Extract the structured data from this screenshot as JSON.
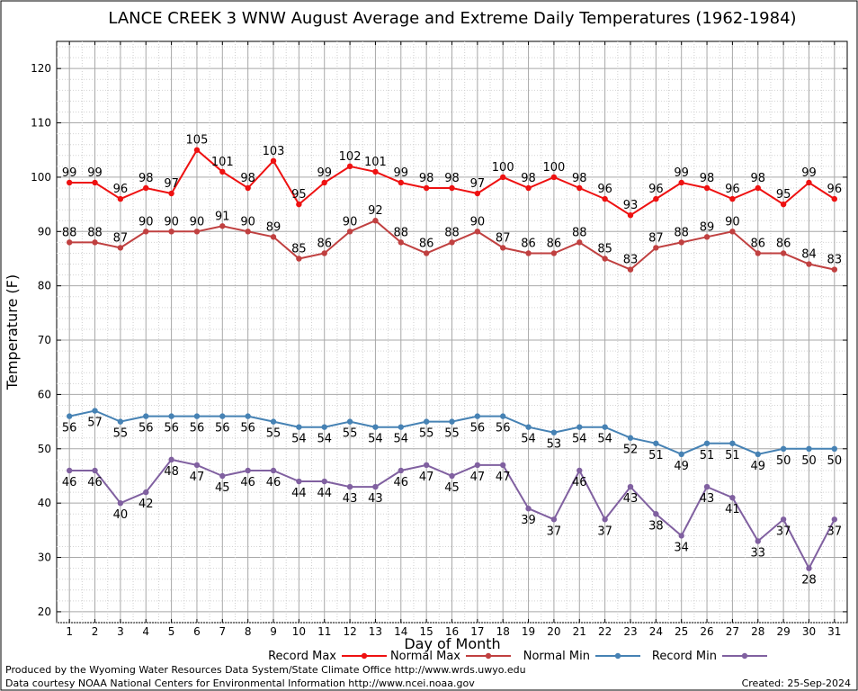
{
  "chart_data": {
    "type": "line",
    "title": "LANCE CREEK 3 WNW August Average and Extreme Daily Temperatures (1962-1984)",
    "xlabel": "Day of Month",
    "ylabel": "Temperature (F)",
    "x": [
      1,
      2,
      3,
      4,
      5,
      6,
      7,
      8,
      9,
      10,
      11,
      12,
      13,
      14,
      15,
      16,
      17,
      18,
      19,
      20,
      21,
      22,
      23,
      24,
      25,
      26,
      27,
      28,
      29,
      30,
      31
    ],
    "xlim": [
      0.5,
      31.5
    ],
    "ylim": [
      18,
      125
    ],
    "yticks": [
      20,
      30,
      40,
      50,
      60,
      70,
      80,
      90,
      100,
      110,
      120
    ],
    "grid": true,
    "legend_position": "bottom",
    "series": [
      {
        "name": "Record Max",
        "color": "#ee1111",
        "label_position": "above",
        "values": [
          99,
          99,
          96,
          98,
          97,
          105,
          101,
          98,
          103,
          95,
          99,
          102,
          101,
          99,
          98,
          98,
          97,
          100,
          98,
          100,
          98,
          96,
          93,
          96,
          99,
          98,
          96,
          98,
          95,
          99,
          96
        ]
      },
      {
        "name": "Normal Max",
        "color": "#c04040",
        "label_position": "above",
        "values": [
          88,
          88,
          87,
          90,
          90,
          90,
          91,
          90,
          89,
          85,
          86,
          90,
          92,
          88,
          86,
          88,
          90,
          87,
          86,
          86,
          88,
          85,
          83,
          87,
          88,
          89,
          90,
          86,
          86,
          84,
          83
        ]
      },
      {
        "name": "Normal Min",
        "color": "#4682b4",
        "label_position": "below",
        "values": [
          56,
          57,
          55,
          56,
          56,
          56,
          56,
          56,
          55,
          54,
          54,
          55,
          54,
          54,
          55,
          55,
          56,
          56,
          54,
          53,
          54,
          54,
          52,
          51,
          49,
          51,
          51,
          49,
          50,
          50,
          50
        ]
      },
      {
        "name": "Record Min",
        "color": "#8060a0",
        "label_position": "below",
        "values": [
          46,
          46,
          40,
          42,
          48,
          47,
          45,
          46,
          46,
          44,
          44,
          43,
          43,
          46,
          47,
          45,
          47,
          47,
          39,
          37,
          46,
          37,
          43,
          38,
          34,
          43,
          41,
          33,
          37,
          28,
          37
        ]
      }
    ]
  },
  "footer": {
    "line1": "Produced by the Wyoming Water Resources Data System/State Climate Office http://www.wrds.uwyo.edu",
    "line2": "Data courtesy NOAA National Centers for Environmental Information http://www.ncei.noaa.gov",
    "created": "Created: 25-Sep-2024"
  }
}
